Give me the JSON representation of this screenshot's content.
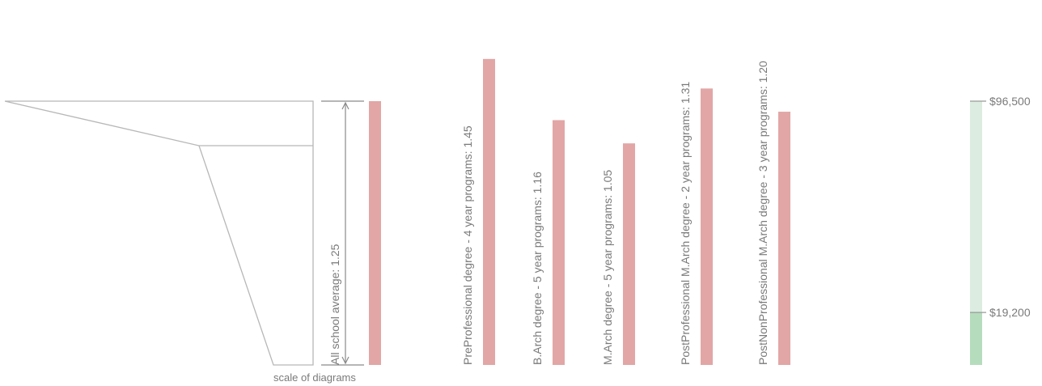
{
  "chart_data": [
    {
      "type": "bar",
      "average": {
        "label": "All school average: 1.25",
        "value": 1.25
      },
      "categories": [
        "PreProfessional degree - 4 year programs: 1.45",
        "B.Arch degree - 5 year programs: 1.16",
        "M.Arch degree - 5 year programs: 1.05",
        "PostProfessional M.Arch degree - 2 year programs: 1.31",
        "PostNonProfessional M.Arch degree - 3 year programs: 1.20"
      ],
      "values": [
        1.45,
        1.16,
        1.05,
        1.31,
        1.2
      ],
      "scale_label": "scale of diagrams",
      "colors": {
        "bar": "#e2a6a6",
        "outline": "#b7b7b7",
        "arrow": "#8a8a8a"
      }
    },
    {
      "type": "bar",
      "tick_labels": [
        "$96,500",
        "$19,200"
      ],
      "values": [
        96500,
        19200
      ],
      "colors": {
        "upper": "#dcece0",
        "lower": "#b5dcbd",
        "tick": "#999999"
      }
    }
  ],
  "colors": {
    "text": "#7a7a7a"
  }
}
